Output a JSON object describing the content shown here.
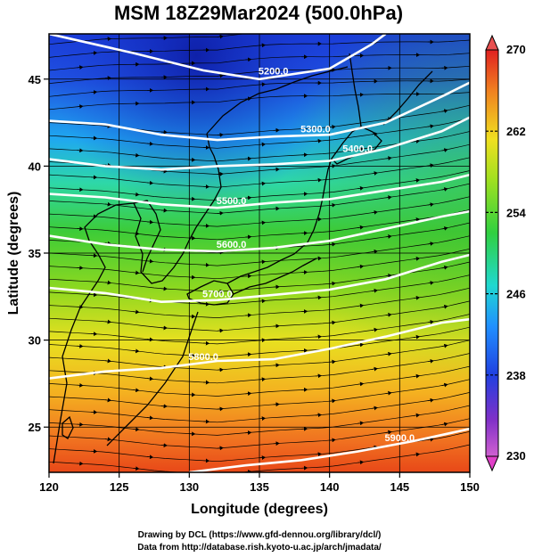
{
  "title": "MSM 18Z29Mar2024 (500.0hPa)",
  "xlabel": "Longitude (degrees)",
  "ylabel": "Latitude  (degrees)",
  "credits": [
    "Drawing by DCL (https://www.gfd-dennou.org/library/dcl/)",
    "Data from http://database.rish.kyoto-u.ac.jp/arch/jmadata/"
  ],
  "chart_data": {
    "type": "heatmap",
    "title": "MSM 18Z29Mar2024 (500.0hPa)",
    "xlabel": "Longitude (degrees)",
    "ylabel": "Latitude  (degrees)",
    "xlim": [
      120,
      150
    ],
    "ylim": [
      22.4,
      47.6
    ],
    "xticks": [
      120,
      125,
      130,
      135,
      140,
      145,
      150
    ],
    "yticks": [
      25,
      30,
      35,
      40,
      45
    ],
    "colorbar": {
      "min": 230,
      "max": 270,
      "ticks": [
        230,
        238,
        246,
        254,
        262,
        270
      ],
      "colors": [
        "#d060d0",
        "#6020c0",
        "#2040e0",
        "#20a0ff",
        "#20e0c0",
        "#30d040",
        "#a0e020",
        "#f0e020",
        "#f08020",
        "#e02020"
      ]
    },
    "contours": [
      {
        "label": "5200.0",
        "values": [
          [
            120,
            47.6
          ],
          [
            126,
            46.5
          ],
          [
            131,
            45.5
          ],
          [
            135,
            45.0
          ],
          [
            140,
            45.6
          ],
          [
            143,
            47.0
          ],
          [
            144,
            47.6
          ]
        ]
      },
      {
        "label": "5300.0",
        "values": [
          [
            120,
            42.6
          ],
          [
            124,
            42.4
          ],
          [
            128,
            41.8
          ],
          [
            132,
            41.5
          ],
          [
            136,
            41.7
          ],
          [
            140,
            41.8
          ],
          [
            144,
            42.5
          ],
          [
            148,
            44.0
          ],
          [
            150,
            44.8
          ]
        ]
      },
      {
        "label": "5400.0",
        "values": [
          [
            120,
            40.4
          ],
          [
            124,
            40.0
          ],
          [
            128,
            39.8
          ],
          [
            132,
            40.0
          ],
          [
            136,
            40.1
          ],
          [
            140,
            40.3
          ],
          [
            144,
            41.0
          ],
          [
            148,
            42.0
          ],
          [
            150,
            42.8
          ]
        ]
      },
      {
        "label": "5500.0",
        "values": [
          [
            120,
            38.4
          ],
          [
            124,
            38.2
          ],
          [
            128,
            37.8
          ],
          [
            132,
            37.6
          ],
          [
            136,
            37.9
          ],
          [
            140,
            38.1
          ],
          [
            144,
            38.6
          ],
          [
            148,
            39.1
          ],
          [
            150,
            39.5
          ]
        ]
      },
      {
        "label": "5600.0",
        "values": [
          [
            120,
            36.0
          ],
          [
            124,
            35.5
          ],
          [
            128,
            35.2
          ],
          [
            132,
            35.1
          ],
          [
            136,
            35.3
          ],
          [
            140,
            35.7
          ],
          [
            144,
            36.4
          ],
          [
            148,
            37.1
          ],
          [
            150,
            37.4
          ]
        ]
      },
      {
        "label": "5700.0",
        "values": [
          [
            120,
            33.0
          ],
          [
            124,
            32.7
          ],
          [
            128,
            32.2
          ],
          [
            132,
            32.3
          ],
          [
            136,
            32.6
          ],
          [
            140,
            32.9
          ],
          [
            144,
            33.5
          ],
          [
            148,
            34.5
          ],
          [
            150,
            34.9
          ]
        ]
      },
      {
        "label": "5800.0",
        "values": [
          [
            120,
            27.8
          ],
          [
            124,
            28.2
          ],
          [
            128,
            28.4
          ],
          [
            132,
            28.8
          ],
          [
            136,
            28.9
          ],
          [
            140,
            29.5
          ],
          [
            144,
            30.2
          ],
          [
            148,
            31.0
          ],
          [
            150,
            31.2
          ]
        ]
      },
      {
        "label": "5900.0",
        "values": [
          [
            130,
            22.4
          ],
          [
            134,
            22.8
          ],
          [
            138,
            23.1
          ],
          [
            142,
            23.6
          ],
          [
            146,
            24.2
          ],
          [
            150,
            24.9
          ]
        ]
      }
    ]
  }
}
